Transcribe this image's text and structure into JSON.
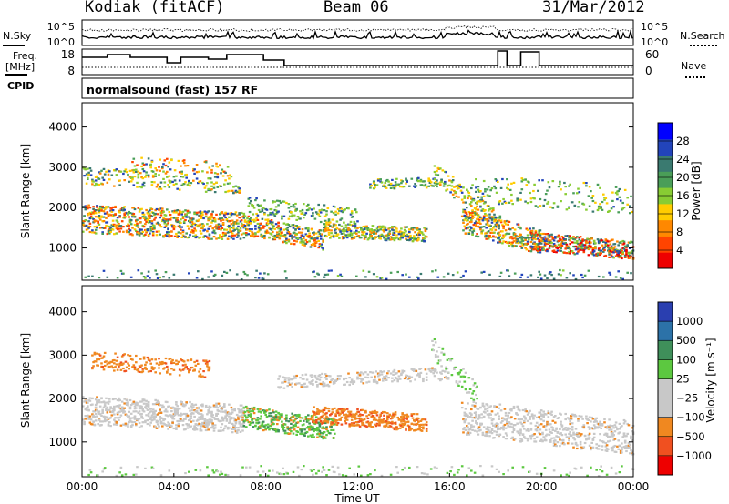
{
  "header": {
    "station": "Kodiak (fitACF)",
    "beam": "Beam 06",
    "date": "31/Mar/2012"
  },
  "strips": {
    "nsky_label": "N.Sky",
    "nsearch_label": "N.Search",
    "freq_label_1": "Freq.",
    "freq_label_2": "[MHz]",
    "nave_label": "Nave",
    "cpid_label": "CPID",
    "cpid_text": "normalsound (fast) 157 RF",
    "noise_ticks_left": [
      "10^5",
      "10^0"
    ],
    "noise_ticks_right": [
      "10^5",
      "10^0"
    ],
    "freq_ticks": [
      "18",
      "8"
    ],
    "nave_ticks": [
      "60",
      "0"
    ]
  },
  "colors": {
    "power_scale": [
      "#0000ff",
      "#2244bb",
      "#3a7a70",
      "#4a9e58",
      "#88cc33",
      "#ffcc00",
      "#ff8800",
      "#ff4400",
      "#ee0000"
    ],
    "velocity_scale": [
      "#2a3fb0",
      "#2c72a8",
      "#3f8f5a",
      "#5cc840",
      "#c8c8c8",
      "#c8c8c8",
      "#f08820",
      "#f05020",
      "#ee0000"
    ]
  },
  "chart_data": [
    {
      "type": "heatmap",
      "name": "power",
      "ylabel": "Slant Range [km]",
      "yticks": [
        "4000",
        "3000",
        "2000",
        "1000"
      ],
      "ylim": [
        200,
        4600
      ],
      "xlim": [
        "00:00",
        "00:00"
      ],
      "colorbar_label": "Power [dB]",
      "colorbar_ticks": [
        "28",
        "24",
        "20",
        "16",
        "12",
        "8",
        "4"
      ]
    },
    {
      "type": "heatmap",
      "name": "velocity",
      "ylabel": "Slant Range [km]",
      "yticks": [
        "4000",
        "3000",
        "2000",
        "1000"
      ],
      "ylim": [
        200,
        4600
      ],
      "xlim": [
        "00:00",
        "00:00"
      ],
      "colorbar_label": "Velocity [m s⁻¹]",
      "colorbar_ticks": [
        "1000",
        "500",
        "100",
        "25",
        "−25",
        "−100",
        "−500",
        "−1000"
      ]
    }
  ],
  "xaxis": {
    "ticks": [
      "00:00",
      "04:00",
      "08:00",
      "12:00",
      "16:00",
      "20:00",
      "00:00"
    ],
    "label": "Time UT"
  }
}
